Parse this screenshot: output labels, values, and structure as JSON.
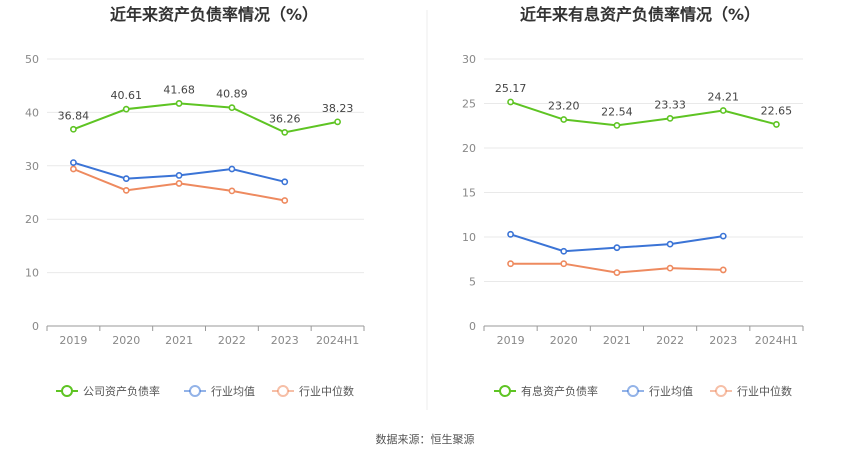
{
  "source_prefix": "数据来源：",
  "source_name": "恒生聚源",
  "colors": {
    "main": "#5ec423",
    "avg": "#3b74d6",
    "median": "#ee8a5f",
    "grid": "#e9e9e9",
    "axis": "#999999"
  },
  "chart_data": [
    {
      "type": "line",
      "title": "近年来资产负债率情况（%）",
      "categories": [
        "2019",
        "2020",
        "2021",
        "2022",
        "2023",
        "2024H1"
      ],
      "ylim": [
        0,
        50
      ],
      "yticks": [
        0,
        10,
        20,
        30,
        40,
        50
      ],
      "series": [
        {
          "name": "公司资产负债率",
          "key": "main",
          "values": [
            36.84,
            40.61,
            41.68,
            40.89,
            36.26,
            38.23
          ],
          "labels": [
            "36.84",
            "40.61",
            "41.68",
            "40.89",
            "36.26",
            "38.23"
          ]
        },
        {
          "name": "行业均值",
          "key": "avg",
          "values": [
            30.6,
            27.6,
            28.2,
            29.4,
            27.0,
            null
          ]
        },
        {
          "name": "行业中位数",
          "key": "median",
          "values": [
            29.4,
            25.4,
            26.7,
            25.3,
            23.5,
            null
          ]
        }
      ]
    },
    {
      "type": "line",
      "title": "近年来有息资产负债率情况（%）",
      "categories": [
        "2019",
        "2020",
        "2021",
        "2022",
        "2023",
        "2024H1"
      ],
      "ylim": [
        0,
        30
      ],
      "yticks": [
        0,
        5,
        10,
        15,
        20,
        25,
        30
      ],
      "series": [
        {
          "name": "有息资产负债率",
          "key": "main",
          "values": [
            25.17,
            23.2,
            22.54,
            23.33,
            24.21,
            22.65
          ],
          "labels": [
            "25.17",
            "23.20",
            "22.54",
            "23.33",
            "24.21",
            "22.65"
          ]
        },
        {
          "name": "行业均值",
          "key": "avg",
          "values": [
            10.3,
            8.4,
            8.8,
            9.2,
            10.1,
            null
          ]
        },
        {
          "name": "行业中位数",
          "key": "median",
          "values": [
            7.0,
            7.0,
            6.0,
            6.5,
            6.3,
            null
          ]
        }
      ]
    }
  ]
}
